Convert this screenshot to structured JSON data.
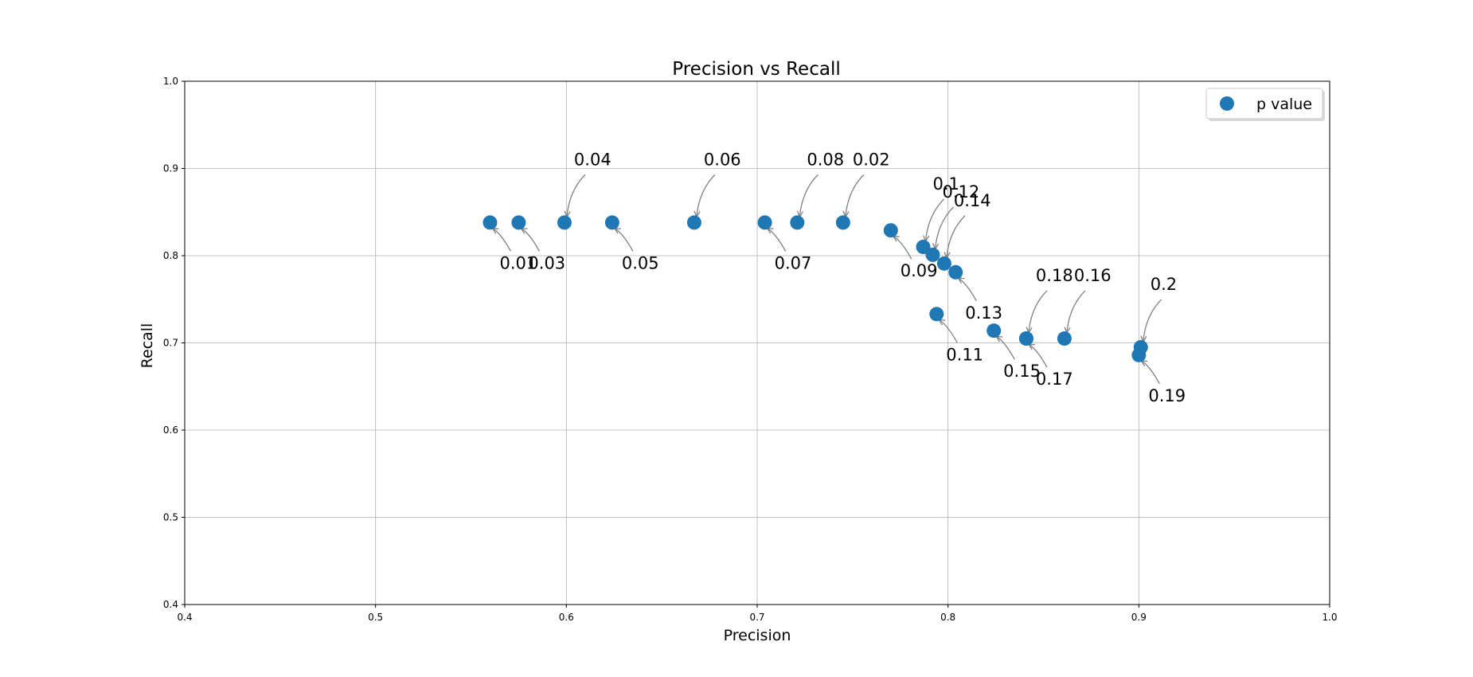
{
  "chart_data": {
    "type": "scatter",
    "title": "Precision vs Recall",
    "xlabel": "Precision",
    "ylabel": "Recall",
    "xlim": [
      0.4,
      1.0
    ],
    "ylim": [
      0.4,
      1.0
    ],
    "xticks": [
      "0.4",
      "0.5",
      "0.6",
      "0.7",
      "0.8",
      "0.9",
      "1.0"
    ],
    "yticks": [
      "0.4",
      "0.5",
      "0.6",
      "0.7",
      "0.8",
      "0.9",
      "1.0"
    ],
    "grid": true,
    "legend": {
      "position": "top-right",
      "entries": [
        "p value"
      ]
    },
    "series": [
      {
        "name": "p value",
        "color": "#1f77b4",
        "points": [
          {
            "x": 0.56,
            "y": 0.838,
            "label": "0.01"
          },
          {
            "x": 0.745,
            "y": 0.838,
            "label": "0.02"
          },
          {
            "x": 0.575,
            "y": 0.838,
            "label": "0.03"
          },
          {
            "x": 0.599,
            "y": 0.838,
            "label": "0.04"
          },
          {
            "x": 0.624,
            "y": 0.838,
            "label": "0.05"
          },
          {
            "x": 0.667,
            "y": 0.838,
            "label": "0.06"
          },
          {
            "x": 0.704,
            "y": 0.838,
            "label": "0.07"
          },
          {
            "x": 0.721,
            "y": 0.838,
            "label": "0.08"
          },
          {
            "x": 0.77,
            "y": 0.829,
            "label": "0.09"
          },
          {
            "x": 0.787,
            "y": 0.81,
            "label": "0.1"
          },
          {
            "x": 0.794,
            "y": 0.733,
            "label": "0.11"
          },
          {
            "x": 0.792,
            "y": 0.801,
            "label": "0.12"
          },
          {
            "x": 0.804,
            "y": 0.781,
            "label": "0.13"
          },
          {
            "x": 0.798,
            "y": 0.791,
            "label": "0.14"
          },
          {
            "x": 0.824,
            "y": 0.714,
            "label": "0.15"
          },
          {
            "x": 0.861,
            "y": 0.705,
            "label": "0.16"
          },
          {
            "x": 0.841,
            "y": 0.705,
            "label": "0.17"
          },
          {
            "x": 0.841,
            "y": 0.705,
            "label": "0.18"
          },
          {
            "x": 0.9,
            "y": 0.686,
            "label": "0.19"
          },
          {
            "x": 0.901,
            "y": 0.695,
            "label": "0.2"
          }
        ]
      }
    ]
  }
}
